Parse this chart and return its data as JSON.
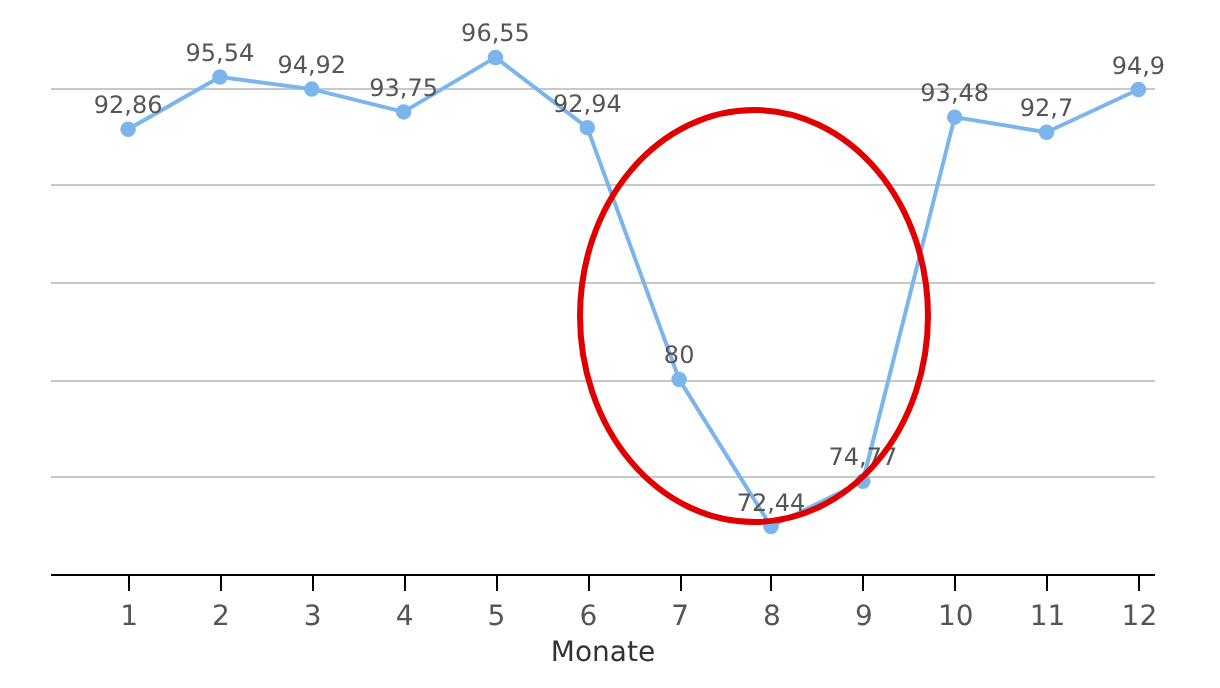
{
  "chart_data": {
    "type": "line",
    "xlabel": "Monate",
    "x": [
      1,
      2,
      3,
      4,
      5,
      6,
      7,
      8,
      9,
      10,
      11,
      12
    ],
    "series": [
      {
        "color": "#7cb5ec",
        "values": [
          92.86,
          95.54,
          94.92,
          93.75,
          96.55,
          92.94,
          80,
          72.44,
          74.77,
          93.48,
          92.7,
          94.9
        ],
        "value_labels": [
          "92,86",
          "95,54",
          "94,92",
          "93,75",
          "96,55",
          "92,94",
          "80",
          "72,44",
          "74,77",
          "93,48",
          "92,7",
          "94,9"
        ]
      }
    ],
    "xlim": [
      0.15,
      12.17
    ],
    "xticks": [
      1,
      2,
      3,
      4,
      5,
      6,
      7,
      8,
      9,
      10,
      11,
      12
    ],
    "ylim": [
      70,
      99.5
    ],
    "yticks": [
      {
        "value": 70,
        "label": null
      },
      {
        "value": 75,
        "label": null
      },
      {
        "value": 80,
        "label": null
      },
      {
        "value": 85,
        "label": null
      },
      {
        "value": 90,
        "label": null
      },
      {
        "value": 95,
        "label": null
      }
    ],
    "grid": "y",
    "tick_labels": "x",
    "marker": "circle",
    "line_style": "solid"
  }
}
